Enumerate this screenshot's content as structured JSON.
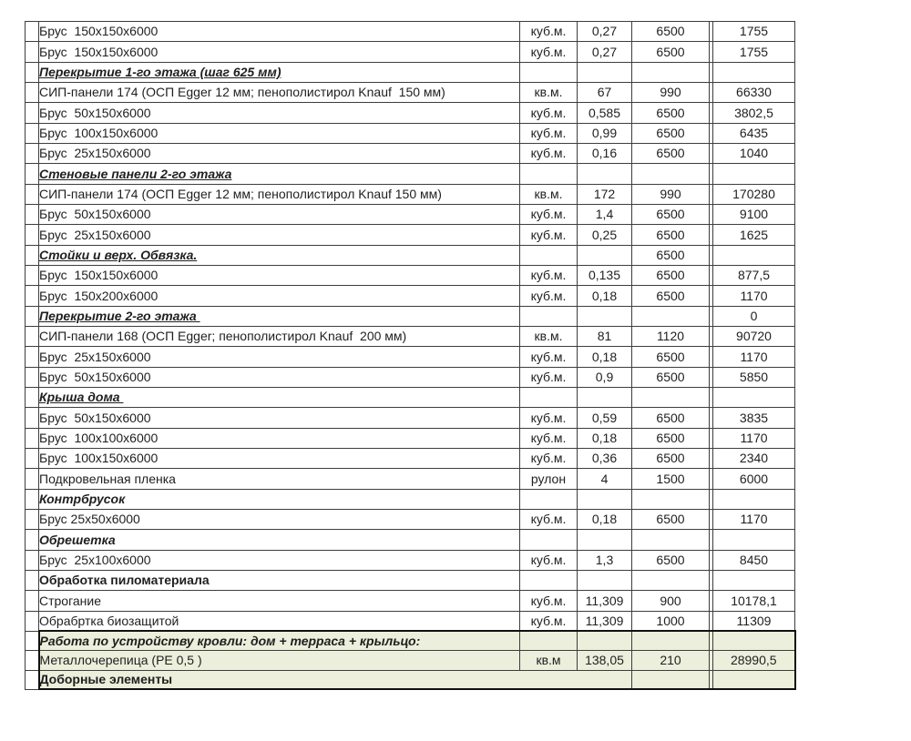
{
  "page": {
    "background": "#ffffff",
    "grid_color": "#3d3d3d",
    "text_color": "#1f1f1f",
    "section_fill": "#ebefdb",
    "section_border": "#111111"
  },
  "table": {
    "rows": [
      {
        "type": "item",
        "name": "Брус  150х150х6000",
        "unit": "куб.м.",
        "qty": "0,27",
        "price": "6500",
        "total": "1755"
      },
      {
        "type": "item",
        "name": "Брус  150х150х6000",
        "unit": "куб.м.",
        "qty": "0,27",
        "price": "6500",
        "total": "1755"
      },
      {
        "type": "header_underlined",
        "name": "Перекрытие 1-го этажа (шаг 625 мм)"
      },
      {
        "type": "item",
        "name": "СИП-панели 174 (ОСП Egger 12 мм; пенополистирол Knauf  150 мм)",
        "unit": "кв.м.",
        "qty": "67",
        "price": "990",
        "total": "66330"
      },
      {
        "type": "item",
        "name": "Брус  50х150х6000",
        "unit": "куб.м.",
        "qty": "0,585",
        "price": "6500",
        "total": "3802,5"
      },
      {
        "type": "item",
        "name": "Брус  100х150х6000",
        "unit": "куб.м.",
        "qty": "0,99",
        "price": "6500",
        "total": "6435"
      },
      {
        "type": "item",
        "name": "Брус  25х150х6000",
        "unit": "куб.м.",
        "qty": "0,16",
        "price": "6500",
        "total": "1040"
      },
      {
        "type": "header_underlined",
        "name": "Стеновые панели 2-го этажа"
      },
      {
        "type": "item",
        "name": "СИП-панели 174 (ОСП Egger 12 мм; пенополистирол Knauf 150 мм)",
        "unit": "кв.м.",
        "qty": "172",
        "price": "990",
        "total": "170280"
      },
      {
        "type": "item",
        "name": "Брус  50х150х6000",
        "unit": "куб.м.",
        "qty": "1,4",
        "price": "6500",
        "total": "9100"
      },
      {
        "type": "item",
        "name": "Брус  25х150х6000",
        "unit": "куб.м.",
        "qty": "0,25",
        "price": "6500",
        "total": "1625"
      },
      {
        "type": "header_underlined",
        "name": "Стойки и верх. Обвязка.",
        "price": "6500"
      },
      {
        "type": "item",
        "name": "Брус  150х150х6000",
        "unit": "куб.м.",
        "qty": "0,135",
        "price": "6500",
        "total": "877,5"
      },
      {
        "type": "item",
        "name": "Брус  150х200х6000",
        "unit": "куб.м.",
        "qty": "0,18",
        "price": "6500",
        "total": "1170"
      },
      {
        "type": "header_underlined",
        "name": "Перекрытие 2-го этажа ",
        "total": "0"
      },
      {
        "type": "item",
        "name": "СИП-панели 168 (ОСП Egger; пенополистирол Knauf  200 мм)",
        "unit": "кв.м.",
        "qty": "81",
        "price": "1120",
        "total": "90720"
      },
      {
        "type": "item",
        "name": "Брус  25х150х6000",
        "unit": "куб.м.",
        "qty": "0,18",
        "price": "6500",
        "total": "1170"
      },
      {
        "type": "item",
        "name": "Брус  50х150х6000",
        "unit": "куб.м.",
        "qty": "0,9",
        "price": "6500",
        "total": "5850"
      },
      {
        "type": "header_underlined",
        "name": "Крыша дома "
      },
      {
        "type": "item",
        "name": "Брус  50х150х6000",
        "unit": "куб.м.",
        "qty": "0,59",
        "price": "6500",
        "total": "3835"
      },
      {
        "type": "item",
        "name": "Брус  100х100х6000",
        "unit": "куб.м.",
        "qty": "0,18",
        "price": "6500",
        "total": "1170"
      },
      {
        "type": "item",
        "name": "Брус  100х150х6000",
        "unit": "куб.м.",
        "qty": "0,36",
        "price": "6500",
        "total": "2340"
      },
      {
        "type": "item",
        "name": "Подкровельная пленка",
        "unit": "рулон",
        "qty": "4",
        "price": "1500",
        "total": "6000"
      },
      {
        "type": "header_italic",
        "name": "Контрбрусок"
      },
      {
        "type": "item",
        "name": "Брус 25х50х6000",
        "unit": "куб.м.",
        "qty": "0,18",
        "price": "6500",
        "total": "1170"
      },
      {
        "type": "header_italic",
        "name": "Обрешетка"
      },
      {
        "type": "item",
        "name": "Брус  25х100х6000",
        "unit": "куб.м.",
        "qty": "1,3",
        "price": "6500",
        "total": "8450"
      },
      {
        "type": "header_bold",
        "name": "Обработка пиломатериала"
      },
      {
        "type": "item",
        "name": "Строгание",
        "unit": "куб.м.",
        "qty": "11,309",
        "price": "900",
        "total": "10178,1"
      },
      {
        "type": "item",
        "name": "Обрабртка биозащитой",
        "unit": "куб.м.",
        "qty": "11,309",
        "price": "1000",
        "total": "11309"
      },
      {
        "type": "header_bold_italic",
        "name": "Работа по устройству кровли: дом + терраса + крыльцо:",
        "green": true,
        "border_top": true
      },
      {
        "type": "item",
        "name": "Металлочерепица (PE 0,5 )",
        "unit": "кв.м",
        "qty": "138,05",
        "price": "210",
        "total": "28990,5",
        "green": true
      },
      {
        "type": "header_bold",
        "name": "Доборные элементы",
        "green": true,
        "border_bottom": true,
        "name_colspan": 3
      }
    ]
  }
}
